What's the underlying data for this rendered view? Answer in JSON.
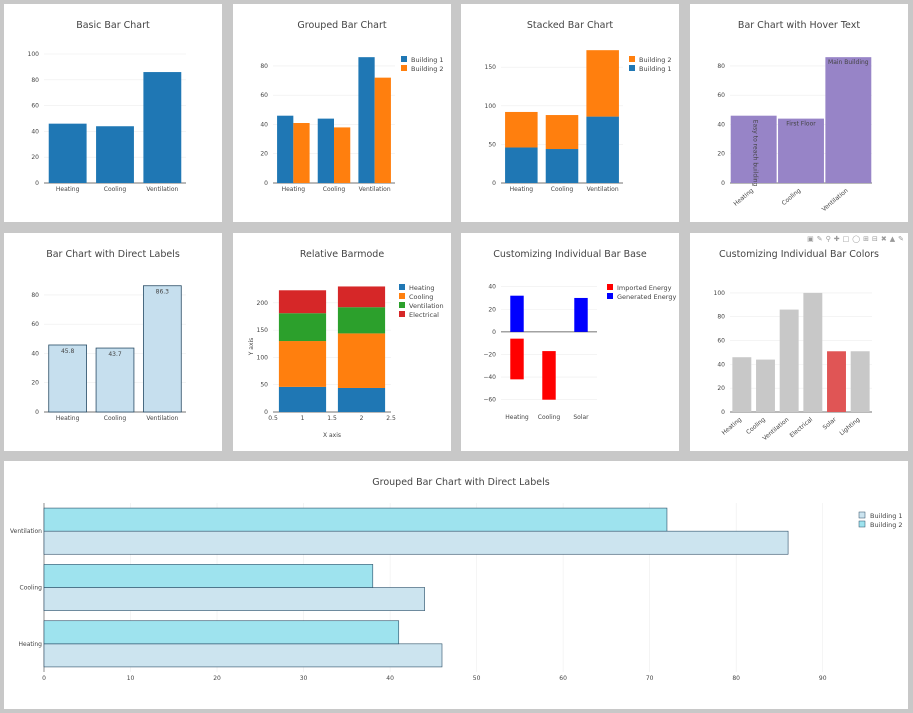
{
  "modebar": {
    "icons": [
      "camera-icon",
      "pan-icon",
      "zoom-icon",
      "zoom-in-icon",
      "zoom-out-icon",
      "lasso-icon",
      "autoscale-icon",
      "reset-icon",
      "spike-icon",
      "hover-icon",
      "compare-icon",
      "plotly-logo-icon"
    ]
  },
  "chart_data": [
    {
      "id": "c1",
      "type": "bar",
      "title": "Basic Bar Chart",
      "categories": [
        "Heating",
        "Cooling",
        "Ventilation"
      ],
      "series": [
        {
          "values": [
            46,
            44,
            86
          ]
        }
      ],
      "ylim": [
        0,
        100
      ],
      "yticks": [
        0,
        20,
        40,
        60,
        80,
        100
      ],
      "colors": [
        "#1f77b4"
      ]
    },
    {
      "id": "c2",
      "type": "bar",
      "barmode": "group",
      "title": "Grouped Bar Chart",
      "categories": [
        "Heating",
        "Cooling",
        "Ventilation"
      ],
      "series": [
        {
          "name": "Building 1",
          "values": [
            46,
            44,
            86
          ]
        },
        {
          "name": "Building 2",
          "values": [
            41,
            38,
            72
          ]
        }
      ],
      "ylim": [
        0,
        95
      ],
      "yticks": [
        0,
        20,
        40,
        60,
        80
      ],
      "colors": [
        "#1f77b4",
        "#ff7f0e"
      ],
      "legend": "top-right"
    },
    {
      "id": "c3",
      "type": "bar",
      "barmode": "stack",
      "title": "Stacked Bar Chart",
      "categories": [
        "Heating",
        "Cooling",
        "Ventilation"
      ],
      "series": [
        {
          "name": "Building 1",
          "values": [
            46,
            44,
            86
          ]
        },
        {
          "name": "Building 2",
          "values": [
            46,
            44,
            86
          ]
        }
      ],
      "ylim": [
        0,
        180
      ],
      "yticks": [
        0,
        50,
        100,
        150
      ],
      "colors": [
        "#1f77b4",
        "#ff7f0e"
      ],
      "legend": "top-right",
      "legend_order": "reversed"
    },
    {
      "id": "c4",
      "type": "bar",
      "title": "Bar Chart with Hover Text",
      "categories": [
        "Heating",
        "Cooling",
        "Ventilation"
      ],
      "series": [
        {
          "values": [
            46,
            44,
            86
          ]
        }
      ],
      "bar_text": [
        "Easy to reach building",
        "First Floor",
        "Main Building"
      ],
      "ylim": [
        0,
        95
      ],
      "yticks": [
        0,
        20,
        40,
        60,
        80
      ],
      "colors": [
        "#9784c7"
      ]
    },
    {
      "id": "c5",
      "type": "bar",
      "title": "Bar Chart with Direct Labels",
      "categories": [
        "Heating",
        "Cooling",
        "Ventilation"
      ],
      "series": [
        {
          "values": [
            45.8,
            43.7,
            86.3
          ]
        }
      ],
      "data_labels": [
        "45.8",
        "43.7",
        "86.3"
      ],
      "ylim": [
        0,
        95
      ],
      "yticks": [
        0,
        20,
        40,
        60,
        80
      ],
      "colors": [
        "#c6dfee"
      ]
    },
    {
      "id": "c6",
      "type": "bar",
      "barmode": "relative",
      "title": "Relative Barmode",
      "xlabel": "X axis",
      "ylabel": "Y axis",
      "x": [
        1,
        2
      ],
      "series": [
        {
          "name": "Heating",
          "values": [
            46,
            44
          ]
        },
        {
          "name": "Cooling",
          "values": [
            84,
            100
          ]
        },
        {
          "name": "Ventilation",
          "values": [
            51,
            48
          ]
        },
        {
          "name": "Electrical",
          "values": [
            42,
            38
          ]
        }
      ],
      "xlim": [
        0.5,
        2.5
      ],
      "xticks": [
        "0.5",
        "1",
        "1.5",
        "2",
        "2.5"
      ],
      "ylim": [
        0,
        240
      ],
      "yticks": [
        0,
        50,
        100,
        150,
        200
      ],
      "colors": [
        "#1f77b4",
        "#ff7f0e",
        "#2ca02c",
        "#d62728"
      ],
      "legend": "top-right"
    },
    {
      "id": "c7",
      "type": "bar",
      "title": "Customizing Individual Bar Base",
      "categories": [
        "Heating",
        "Cooling",
        "Solar"
      ],
      "series": [
        {
          "name": "Imported Energy",
          "values": [
            -36,
            -43,
            0
          ],
          "base": [
            -6,
            -17,
            0
          ]
        },
        {
          "name": "Generated Energy",
          "values": [
            0,
            0,
            30
          ],
          "base": [
            0,
            0,
            0
          ]
        }
      ],
      "extra_bars": [
        {
          "category": "Heating",
          "y0": 0,
          "y1": 32
        }
      ],
      "ylim": [
        -70,
        45
      ],
      "yticks": [
        40,
        20,
        0,
        -20,
        -40,
        -60
      ],
      "ytick_labels": [
        "40",
        "20",
        "0",
        "−20",
        "−40",
        "−60"
      ],
      "colors": [
        "#ff0000",
        "#0000ff"
      ],
      "legend": "top-right"
    },
    {
      "id": "c8",
      "type": "bar",
      "title": "Customizing Individual Bar Colors",
      "categories": [
        "Heating",
        "Cooling",
        "Ventilation",
        "Electrical",
        "Solar",
        "Lighting"
      ],
      "series": [
        {
          "values": [
            46,
            44,
            86,
            100,
            51,
            51
          ]
        }
      ],
      "bar_colors": [
        "#c8c8c8",
        "#c8c8c8",
        "#c8c8c8",
        "#c8c8c8",
        "#e05555",
        "#c8c8c8"
      ],
      "ylim": [
        0,
        110
      ],
      "yticks": [
        0,
        20,
        40,
        60,
        80,
        100
      ]
    },
    {
      "id": "c9",
      "type": "bar",
      "orientation": "h",
      "barmode": "group",
      "title": "Grouped Bar Chart with Direct Labels",
      "categories": [
        "Heating",
        "Cooling",
        "Ventilation"
      ],
      "series": [
        {
          "name": "Building 1",
          "values": [
            46,
            44,
            86
          ]
        },
        {
          "name": "Building 2",
          "values": [
            41,
            38,
            72
          ]
        }
      ],
      "xlim": [
        0,
        92
      ],
      "xticks": [
        0,
        10,
        20,
        30,
        40,
        50,
        60,
        70,
        80,
        90
      ],
      "colors": [
        "#cce4ef",
        "#9ee3ee"
      ],
      "legend": "top-right"
    }
  ]
}
